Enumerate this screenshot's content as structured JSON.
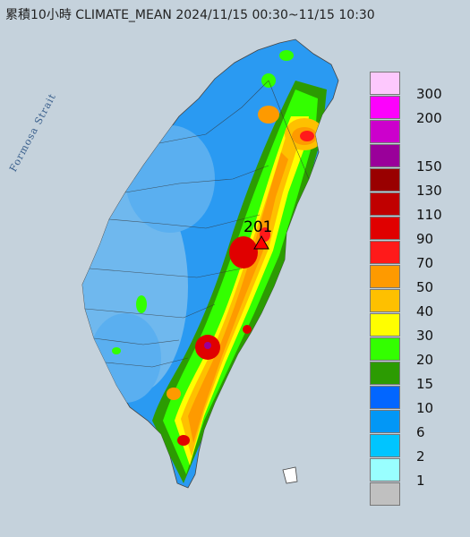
{
  "title": "累積10小時 CLIMATE_MEAN 2024/11/15 00:30~11/15 10:30",
  "sea_label": "Formosa Strait",
  "peak": {
    "label": "201",
    "color": "#ff0000"
  },
  "legend": [
    {
      "label": "300",
      "color": "#fdc8fd"
    },
    {
      "label": "200",
      "color": "#fc02fc"
    },
    {
      "label": "",
      "color": "#cc00cc"
    },
    {
      "label": "150",
      "color": "#9a009a"
    },
    {
      "label": "130",
      "color": "#990000"
    },
    {
      "label": "110",
      "color": "#c00000"
    },
    {
      "label": "90",
      "color": "#e00000"
    },
    {
      "label": "70",
      "color": "#ff1a1a"
    },
    {
      "label": "50",
      "color": "#fe9a00"
    },
    {
      "label": "40",
      "color": "#fec000"
    },
    {
      "label": "30",
      "color": "#fffe00"
    },
    {
      "label": "20",
      "color": "#33ff00"
    },
    {
      "label": "15",
      "color": "#2c9b02"
    },
    {
      "label": "10",
      "color": "#0266ff"
    },
    {
      "label": "6",
      "color": "#0297f6"
    },
    {
      "label": "2",
      "color": "#00c5ff"
    },
    {
      "label": "1",
      "color": "#99ffff"
    },
    {
      "label": "",
      "color": "#c0c0c0"
    }
  ],
  "colors": {
    "sea": "#c5d2dc",
    "land_low": "#2a9af2",
    "land_mid": "#6fb8ee"
  }
}
